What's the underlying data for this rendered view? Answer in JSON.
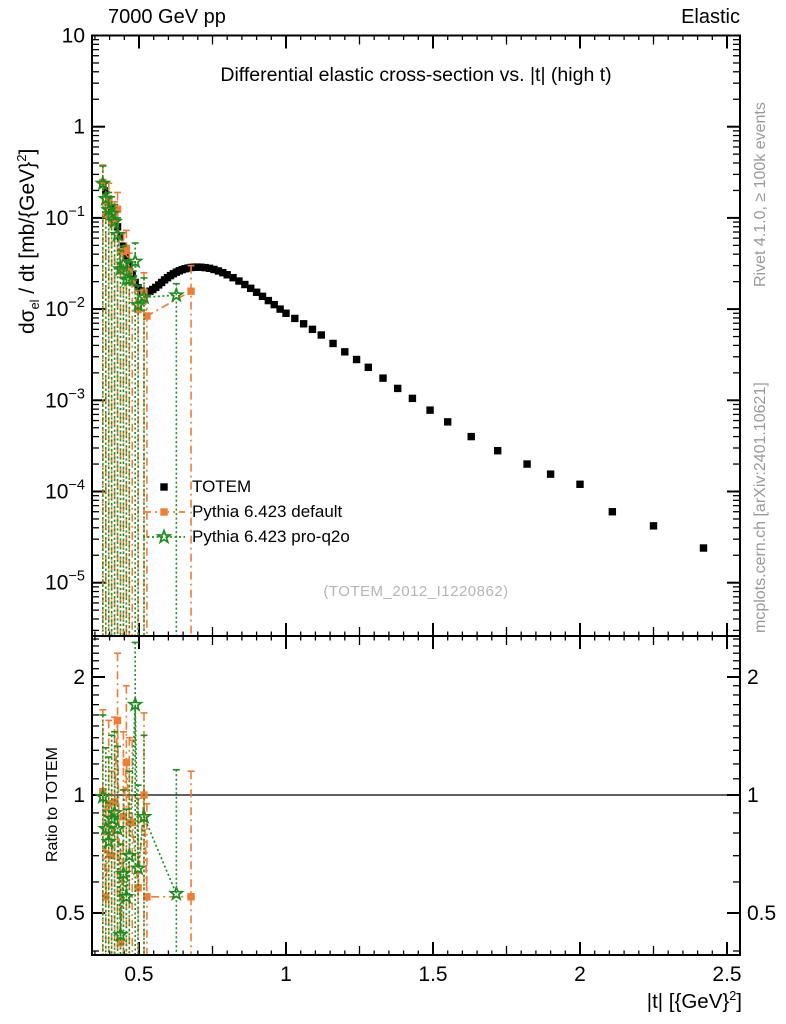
{
  "header": {
    "left": "7000 GeV pp",
    "right": "Elastic"
  },
  "main_panel": {
    "title": "Differential elastic cross-section vs. |t| (high t)",
    "watermark": "(TOTEM_2012_I1220862)",
    "ylabel": {
      "pre": "dσ",
      "sub": "el",
      "mid": " / dt [mb/{GeV}",
      "sup": "2",
      "post": "]"
    },
    "yticks": [
      {
        "v": 10,
        "base": "10",
        "exp": ""
      },
      {
        "v": 1,
        "base": "1",
        "exp": ""
      },
      {
        "v": 0.1,
        "base": "10",
        "exp": "-1"
      },
      {
        "v": 0.01,
        "base": "10",
        "exp": "-2"
      },
      {
        "v": 0.001,
        "base": "10",
        "exp": "-3"
      },
      {
        "v": 0.0001,
        "base": "10",
        "exp": "-4"
      },
      {
        "v": 1e-05,
        "base": "10",
        "exp": "-5"
      }
    ]
  },
  "ratio_panel": {
    "ylabel": "Ratio to TOTEM",
    "yticks": [
      {
        "v": 2,
        "label": "2"
      },
      {
        "v": 1,
        "label": "1"
      },
      {
        "v": 0.5,
        "label": "0.5"
      }
    ]
  },
  "x_axis": {
    "label": {
      "pre": "|t| [{GeV}",
      "sup": "2",
      "post": "]"
    },
    "ticks": [
      {
        "v": 0.5,
        "label": "0.5"
      },
      {
        "v": 1,
        "label": "1"
      },
      {
        "v": 1.5,
        "label": "1.5"
      },
      {
        "v": 2,
        "label": "2"
      },
      {
        "v": 2.5,
        "label": "2.5"
      }
    ]
  },
  "side_notes": {
    "top": "Rivet 4.1.0, ≥ 100k events",
    "bottom": "mcplots.cern.ch [arXiv:2401.10621]"
  },
  "legend": {
    "items": [
      {
        "label": "TOTEM"
      },
      {
        "label": "Pythia 6.423 default"
      },
      {
        "label": "Pythia 6.423 pro-q2o"
      }
    ]
  },
  "colors": {
    "totem": "#000000",
    "pythia_default": "#ee7d36",
    "pythia_proq2o": "#1f8c1f",
    "frame": "#000000",
    "side_note": "#999999",
    "watermark": "#b5b5b5"
  },
  "chart_data": {
    "type": "scatter",
    "title": "Differential elastic cross-section vs. |t| (high t)",
    "xlabel": "|t| [{GeV}^2]",
    "ylabel": "dsigma_el / dt [mb/{GeV}^2]",
    "x_range": [
      0.34,
      2.545
    ],
    "x_scale": "linear",
    "main_y_range": [
      2.6e-06,
      10
    ],
    "main_y_scale": "log",
    "ratio_y_range": [
      0.39,
      2.54
    ],
    "ratio_y_scale": "log",
    "ratio_reference_line": 1,
    "legend_position": "middle-left",
    "series": [
      {
        "name": "TOTEM",
        "role": "data",
        "color_key": "totem",
        "marker": "square-filled",
        "line": "none",
        "points": [
          [
            0.377,
            0.24
          ],
          [
            0.387,
            0.198
          ],
          [
            0.397,
            0.16
          ],
          [
            0.407,
            0.128
          ],
          [
            0.417,
            0.101
          ],
          [
            0.427,
            0.0798
          ],
          [
            0.437,
            0.0625
          ],
          [
            0.447,
            0.049
          ],
          [
            0.457,
            0.0383
          ],
          [
            0.467,
            0.0301
          ],
          [
            0.477,
            0.024
          ],
          [
            0.487,
            0.0196
          ],
          [
            0.497,
            0.0171
          ],
          [
            0.507,
            0.0158
          ],
          [
            0.517,
            0.0153
          ],
          [
            0.527,
            0.0153
          ],
          [
            0.537,
            0.0157
          ],
          [
            0.547,
            0.0164
          ],
          [
            0.557,
            0.0173
          ],
          [
            0.567,
            0.0184
          ],
          [
            0.577,
            0.0196
          ],
          [
            0.587,
            0.0209
          ],
          [
            0.597,
            0.0221
          ],
          [
            0.607,
            0.0233
          ],
          [
            0.617,
            0.0244
          ],
          [
            0.627,
            0.0254
          ],
          [
            0.637,
            0.0263
          ],
          [
            0.647,
            0.0271
          ],
          [
            0.657,
            0.0277
          ],
          [
            0.667,
            0.0282
          ],
          [
            0.677,
            0.0286
          ],
          [
            0.687,
            0.0288
          ],
          [
            0.697,
            0.0289
          ],
          [
            0.71,
            0.0288
          ],
          [
            0.725,
            0.0285
          ],
          [
            0.74,
            0.028
          ],
          [
            0.755,
            0.0272
          ],
          [
            0.77,
            0.0262
          ],
          [
            0.785,
            0.0251
          ],
          [
            0.8,
            0.0238
          ],
          [
            0.82,
            0.0221
          ],
          [
            0.84,
            0.0203
          ],
          [
            0.86,
            0.0186
          ],
          [
            0.88,
            0.0169
          ],
          [
            0.9,
            0.0153
          ],
          [
            0.92,
            0.0138
          ],
          [
            0.94,
            0.0124
          ],
          [
            0.96,
            0.0112
          ],
          [
            0.98,
            0.01
          ],
          [
            1.0,
            0.009
          ],
          [
            1.03,
            0.0079
          ],
          [
            1.06,
            0.0069
          ],
          [
            1.09,
            0.006
          ],
          [
            1.12,
            0.0052
          ],
          [
            1.16,
            0.0042
          ],
          [
            1.2,
            0.0034
          ],
          [
            1.24,
            0.0028
          ],
          [
            1.28,
            0.0023
          ],
          [
            1.33,
            0.00175
          ],
          [
            1.38,
            0.00135
          ],
          [
            1.43,
            0.00105
          ],
          [
            1.49,
            0.00078
          ],
          [
            1.55,
            0.00058
          ],
          [
            1.63,
            0.0004
          ],
          [
            1.72,
            0.00028
          ],
          [
            1.82,
            0.0002
          ],
          [
            1.9,
            0.000155
          ],
          [
            2.0,
            0.00012
          ],
          [
            2.11,
            6e-05
          ],
          [
            2.25,
            4.2e-05
          ],
          [
            2.42,
            2.4e-05
          ]
        ]
      },
      {
        "name": "Pythia 6.423 default",
        "role": "mc",
        "color_key": "pythia_default",
        "marker": "square-filled",
        "line": "dashdot",
        "points": [
          [
            0.377,
            0.245,
            1e-06,
            0.38
          ],
          [
            0.387,
            0.109,
            1e-06,
            0.17
          ],
          [
            0.397,
            0.152,
            1e-06,
            0.24
          ],
          [
            0.407,
            0.0896,
            1e-06,
            0.14
          ],
          [
            0.417,
            0.097,
            1e-06,
            0.15
          ],
          [
            0.427,
            0.124,
            1e-06,
            0.19
          ],
          [
            0.437,
            0.0263,
            1e-06,
            0.042
          ],
          [
            0.447,
            0.0431,
            1e-06,
            0.068
          ],
          [
            0.457,
            0.0463,
            1e-06,
            0.073
          ],
          [
            0.467,
            0.0256,
            1e-06,
            0.041
          ],
          [
            0.477,
            0.0204,
            1e-06,
            0.033
          ],
          [
            0.497,
            0.0099,
            1e-06,
            0.016
          ],
          [
            0.517,
            0.0153,
            1e-06,
            0.025
          ],
          [
            0.527,
            0.0084,
            1e-06,
            0.014
          ],
          [
            0.677,
            0.0157,
            1e-06,
            0.03
          ]
        ],
        "ratio_points": [
          [
            0.377,
            1.02,
            0.2,
            1.65
          ],
          [
            0.387,
            0.55,
            0.2,
            0.92
          ],
          [
            0.397,
            0.95,
            0.2,
            1.55
          ],
          [
            0.407,
            0.7,
            0.2,
            1.15
          ],
          [
            0.417,
            0.96,
            0.2,
            1.58
          ],
          [
            0.427,
            1.55,
            0.2,
            2.3
          ],
          [
            0.437,
            0.42,
            0.2,
            0.72
          ],
          [
            0.447,
            0.88,
            0.2,
            1.45
          ],
          [
            0.457,
            1.21,
            0.2,
            1.9
          ],
          [
            0.467,
            0.85,
            0.2,
            1.4
          ],
          [
            0.477,
            0.85,
            0.2,
            1.38
          ],
          [
            0.497,
            0.58,
            0.2,
            0.98
          ],
          [
            0.517,
            1.0,
            0.2,
            1.62
          ],
          [
            0.527,
            0.55,
            0.2,
            0.95
          ],
          [
            0.677,
            0.55,
            0.2,
            1.15
          ]
        ]
      },
      {
        "name": "Pythia 6.423 pro-q2o",
        "role": "mc",
        "color_key": "pythia_proq2o",
        "marker": "star-open",
        "line": "dotted",
        "points": [
          [
            0.377,
            0.238,
            1e-06,
            0.37
          ],
          [
            0.387,
            0.162,
            1e-06,
            0.25
          ],
          [
            0.397,
            0.122,
            1e-06,
            0.19
          ],
          [
            0.407,
            0.111,
            1e-06,
            0.17
          ],
          [
            0.417,
            0.091,
            1e-06,
            0.14
          ],
          [
            0.427,
            0.0654,
            1e-06,
            0.1
          ],
          [
            0.437,
            0.0275,
            1e-06,
            0.044
          ],
          [
            0.447,
            0.0309,
            1e-06,
            0.049
          ],
          [
            0.457,
            0.0211,
            1e-06,
            0.034
          ],
          [
            0.467,
            0.0211,
            1e-06,
            0.033
          ],
          [
            0.487,
            0.0333,
            1e-06,
            0.053
          ],
          [
            0.497,
            0.0111,
            1e-06,
            0.018
          ],
          [
            0.517,
            0.0135,
            1e-06,
            0.022
          ],
          [
            0.627,
            0.0142,
            1e-06,
            0.019
          ]
        ],
        "ratio_points": [
          [
            0.377,
            0.99,
            0.2,
            1.6
          ],
          [
            0.387,
            0.82,
            0.2,
            1.32
          ],
          [
            0.397,
            0.76,
            0.2,
            1.25
          ],
          [
            0.407,
            0.87,
            0.2,
            1.42
          ],
          [
            0.417,
            0.9,
            0.2,
            1.45
          ],
          [
            0.427,
            0.82,
            0.2,
            1.33
          ],
          [
            0.437,
            0.44,
            0.2,
            0.75
          ],
          [
            0.447,
            0.63,
            0.2,
            1.03
          ],
          [
            0.457,
            0.55,
            0.2,
            0.92
          ],
          [
            0.467,
            0.7,
            0.2,
            1.15
          ],
          [
            0.487,
            1.7,
            0.2,
            2.45
          ],
          [
            0.497,
            0.65,
            0.2,
            1.06
          ],
          [
            0.517,
            0.88,
            0.2,
            1.42
          ],
          [
            0.627,
            0.56,
            0.2,
            1.16
          ]
        ]
      }
    ]
  }
}
